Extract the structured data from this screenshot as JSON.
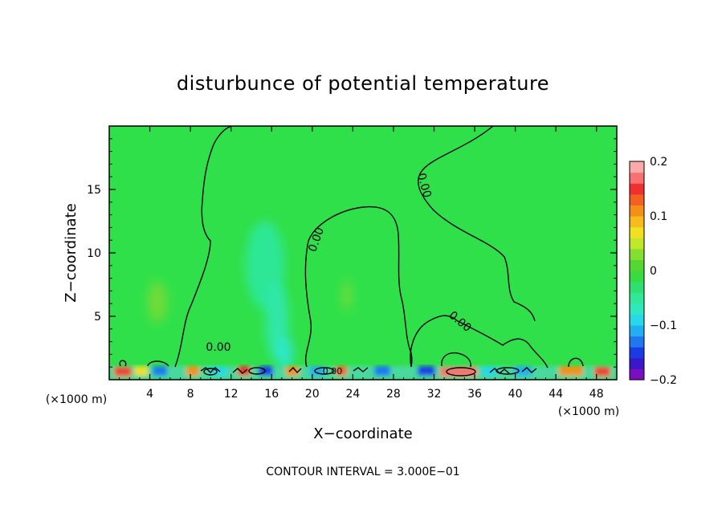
{
  "chart_data": {
    "type": "heatmap",
    "title": "disturbunce of potential temperature",
    "xlabel": "X−coordinate",
    "ylabel": "Z−coordinate",
    "x_unit_left": "(×1000 m)",
    "x_unit_right": "(×1000 m)",
    "xlim": [
      0,
      50
    ],
    "ylim": [
      0,
      20
    ],
    "x_ticks": [
      "4",
      "8",
      "12",
      "16",
      "20",
      "24",
      "28",
      "32",
      "36",
      "40",
      "44",
      "48"
    ],
    "y_ticks": [
      "5",
      "10",
      "15"
    ],
    "x_tick_values": [
      4,
      8,
      12,
      16,
      20,
      24,
      28,
      32,
      36,
      40,
      44,
      48
    ],
    "y_tick_values": [
      5,
      10,
      15
    ],
    "colorbar": {
      "min": -0.2,
      "max": 0.2,
      "tick_labels": [
        "0.2",
        "0.1",
        "0",
        "−0.1",
        "−0.2"
      ],
      "tick_values": [
        0.2,
        0.1,
        0,
        -0.1,
        -0.2
      ],
      "colors": [
        "#7b0fbf",
        "#3a17c8",
        "#1a3ce6",
        "#1e78f0",
        "#22aef0",
        "#26d8e8",
        "#2ee8c0",
        "#30e898",
        "#2fe070",
        "#38dc40",
        "#56d630",
        "#84e030",
        "#bfe82a",
        "#f0e020",
        "#f4bc1c",
        "#f49018",
        "#f46020",
        "#f03030",
        "#f87070",
        "#fba8a8"
      ]
    },
    "background_value": 0.0,
    "contour_labels": [
      "0.00",
      "0.00",
      "0.00",
      "0.00",
      "0.00"
    ],
    "contour_interval_text": "CONTOUR INTERVAL = 3.000E−01"
  }
}
